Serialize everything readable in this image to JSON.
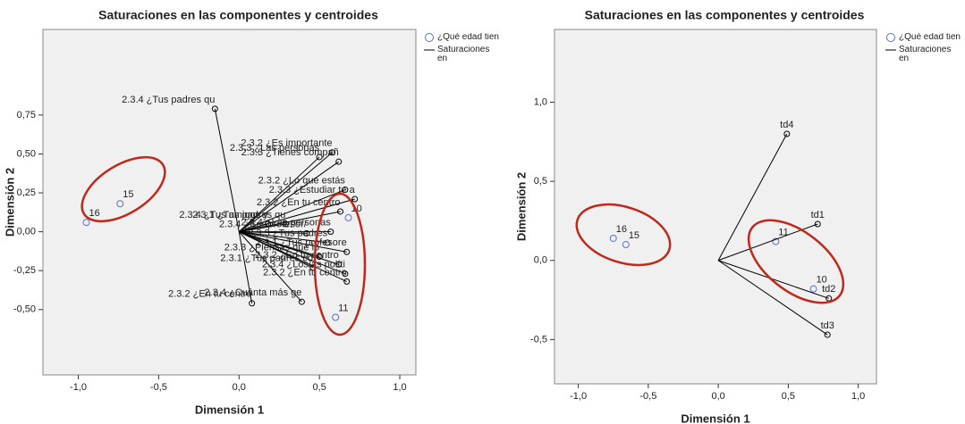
{
  "chart_data": [
    {
      "type": "biplot",
      "title": "Saturaciones en las componentes y centroides",
      "x_label": "Dimensión 1",
      "y_label": "Dimensión 2",
      "xlim": [
        -1.22,
        1.1
      ],
      "ylim": [
        -0.92,
        1.3
      ],
      "xticks": [
        {
          "value": -1.0,
          "label": "-1,0"
        },
        {
          "value": -0.5,
          "label": "-0,5"
        },
        {
          "value": 0.0,
          "label": "0,0"
        },
        {
          "value": 0.5,
          "label": "0,5"
        },
        {
          "value": 1.0,
          "label": "1,0"
        }
      ],
      "yticks": [
        {
          "value": 0.75,
          "label": "0,75"
        },
        {
          "value": 0.5,
          "label": "0,50"
        },
        {
          "value": 0.25,
          "label": "0,25"
        },
        {
          "value": 0.0,
          "label": "0,00"
        },
        {
          "value": -0.25,
          "label": "-0,25"
        },
        {
          "value": -0.5,
          "label": "-0,50"
        }
      ],
      "series": [
        {
          "name": "¿Qué edad tien",
          "color": "#5a6fcf",
          "marker": "circle",
          "labels": [
            "15",
            "16",
            "10",
            "11"
          ],
          "x": [
            -0.74,
            -0.95,
            0.68,
            0.6
          ],
          "values": [
            0.18,
            0.06,
            0.09,
            -0.55
          ]
        },
        {
          "name": "Saturaciones en componentes",
          "color": "#000000",
          "marker": "vector",
          "labels": [
            "2.3.4 ¿Tus padres qu",
            "2.3.2 ¿Es importante",
            "2.3.3 ¿Las personas",
            "2.3.3 ¿Tienes compañ",
            "2.3.2 ¿Lo que estás",
            "2.3.3 ¿Estudiar te a",
            "2.3.2 ¿En tu centro",
            "2.3.4 ¿Tus amigos y",
            "2.3.1 ¿Tus padres qu",
            "2.3.4 ¿Las personas",
            "2.3.4 ¿Ser profesor/",
            "2.3.3 ¿Tus padres",
            "2.3.1 ¿Tus profesore",
            "2.3.3 ¿Piensas que lo",
            "2.3.2 ¿En tu centro",
            "2.3.1 ¿Tus padres co",
            "2.3.4 ¿Los/as políti",
            "2.3.2 ¿En tu centro",
            "2.3.2 ¿En tu centro",
            "2.3.4 ¿Cuánta más ge"
          ],
          "x": [
            -0.15,
            0.58,
            0.5,
            0.62,
            0.66,
            0.72,
            0.63,
            0.18,
            0.29,
            0.57,
            0.42,
            0.55,
            0.67,
            0.5,
            0.62,
            0.46,
            0.66,
            0.08,
            0.67,
            0.39
          ],
          "values": [
            0.79,
            0.51,
            0.48,
            0.45,
            0.27,
            0.21,
            0.13,
            0.05,
            0.05,
            0.0,
            -0.01,
            -0.07,
            -0.13,
            -0.16,
            -0.21,
            -0.23,
            -0.27,
            -0.46,
            -0.32,
            -0.45
          ]
        }
      ]
    },
    {
      "type": "biplot",
      "title": "Saturaciones en las componentes y centroides",
      "x_label": "Dimensión 1",
      "y_label": "Dimensión 2",
      "xlim": [
        -1.17,
        1.13
      ],
      "ylim": [
        -0.78,
        1.46
      ],
      "xticks": [
        {
          "value": -1.0,
          "label": "-1,0"
        },
        {
          "value": -0.5,
          "label": "-0,5"
        },
        {
          "value": 0.0,
          "label": "0,0"
        },
        {
          "value": 0.5,
          "label": "0,5"
        },
        {
          "value": 1.0,
          "label": "1,0"
        }
      ],
      "yticks": [
        {
          "value": 1.0,
          "label": "1,0"
        },
        {
          "value": 0.5,
          "label": "0,5"
        },
        {
          "value": 0.0,
          "label": "0,0"
        },
        {
          "value": -0.5,
          "label": "-0,5"
        }
      ],
      "series": [
        {
          "name": "¿Qué edad tien",
          "color": "#5a6fcf",
          "marker": "circle",
          "labels": [
            "16",
            "15",
            "11",
            "10"
          ],
          "x": [
            -0.75,
            -0.66,
            0.41,
            0.68
          ],
          "values": [
            0.14,
            0.1,
            0.12,
            -0.18
          ]
        },
        {
          "name": "Saturaciones en componentes",
          "color": "#000000",
          "marker": "vector",
          "labels": [
            "td4",
            "td1",
            "td2",
            "td3"
          ],
          "x": [
            0.49,
            0.71,
            0.79,
            0.78
          ],
          "values": [
            0.8,
            0.23,
            -0.24,
            -0.47
          ]
        }
      ]
    }
  ]
}
